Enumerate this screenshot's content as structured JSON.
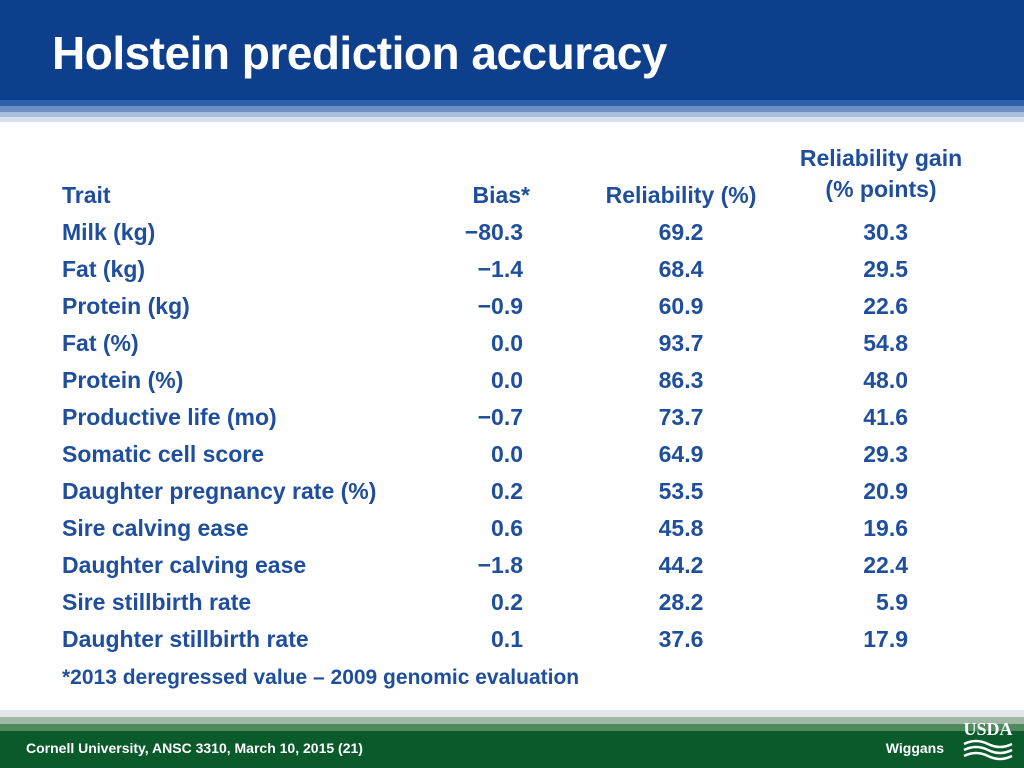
{
  "slide": {
    "title": "Holstein prediction accuracy",
    "footnote": "*2013 deregressed value – 2009 genomic evaluation",
    "footer_left": "Cornell University, ANSC 3310, March 10, 2015 (21)",
    "footer_right": "Wiggans",
    "logo_text": "USDA",
    "colors": {
      "header_blue": "#0e3f8c",
      "text_blue": "#1f4e9c",
      "footer_green": "#0b5a2c"
    }
  },
  "table": {
    "headers": {
      "trait": "Trait",
      "bias": "Bias*",
      "reliability": "Reliability (%)",
      "gain_line1": "Reliability gain",
      "gain_line2": "(% points)"
    },
    "rows": [
      {
        "trait": "Milk (kg)",
        "bias": "−80.3",
        "reliability": "69.2",
        "gain": "30.3"
      },
      {
        "trait": "Fat (kg)",
        "bias": "−1.4",
        "reliability": "68.4",
        "gain": "29.5"
      },
      {
        "trait": "Protein (kg)",
        "bias": "−0.9",
        "reliability": "60.9",
        "gain": "22.6"
      },
      {
        "trait": "Fat (%)",
        "bias": "0.0",
        "reliability": "93.7",
        "gain": "54.8"
      },
      {
        "trait": "Protein (%)",
        "bias": "0.0",
        "reliability": "86.3",
        "gain": "48.0"
      },
      {
        "trait": "Productive life (mo)",
        "bias": "−0.7",
        "reliability": "73.7",
        "gain": "41.6"
      },
      {
        "trait": "Somatic cell score",
        "bias": "0.0",
        "reliability": "64.9",
        "gain": "29.3"
      },
      {
        "trait": "Daughter pregnancy rate (%)",
        "bias": "0.2",
        "reliability": "53.5",
        "gain": "20.9"
      },
      {
        "trait": "Sire calving ease",
        "bias": "0.6",
        "reliability": "45.8",
        "gain": "19.6"
      },
      {
        "trait": "Daughter calving ease",
        "bias": "−1.8",
        "reliability": "44.2",
        "gain": "22.4"
      },
      {
        "trait": "Sire stillbirth rate",
        "bias": "0.2",
        "reliability": "28.2",
        "gain": "5.9"
      },
      {
        "trait": "Daughter stillbirth rate",
        "bias": "0.1",
        "reliability": "37.6",
        "gain": "17.9"
      }
    ]
  }
}
